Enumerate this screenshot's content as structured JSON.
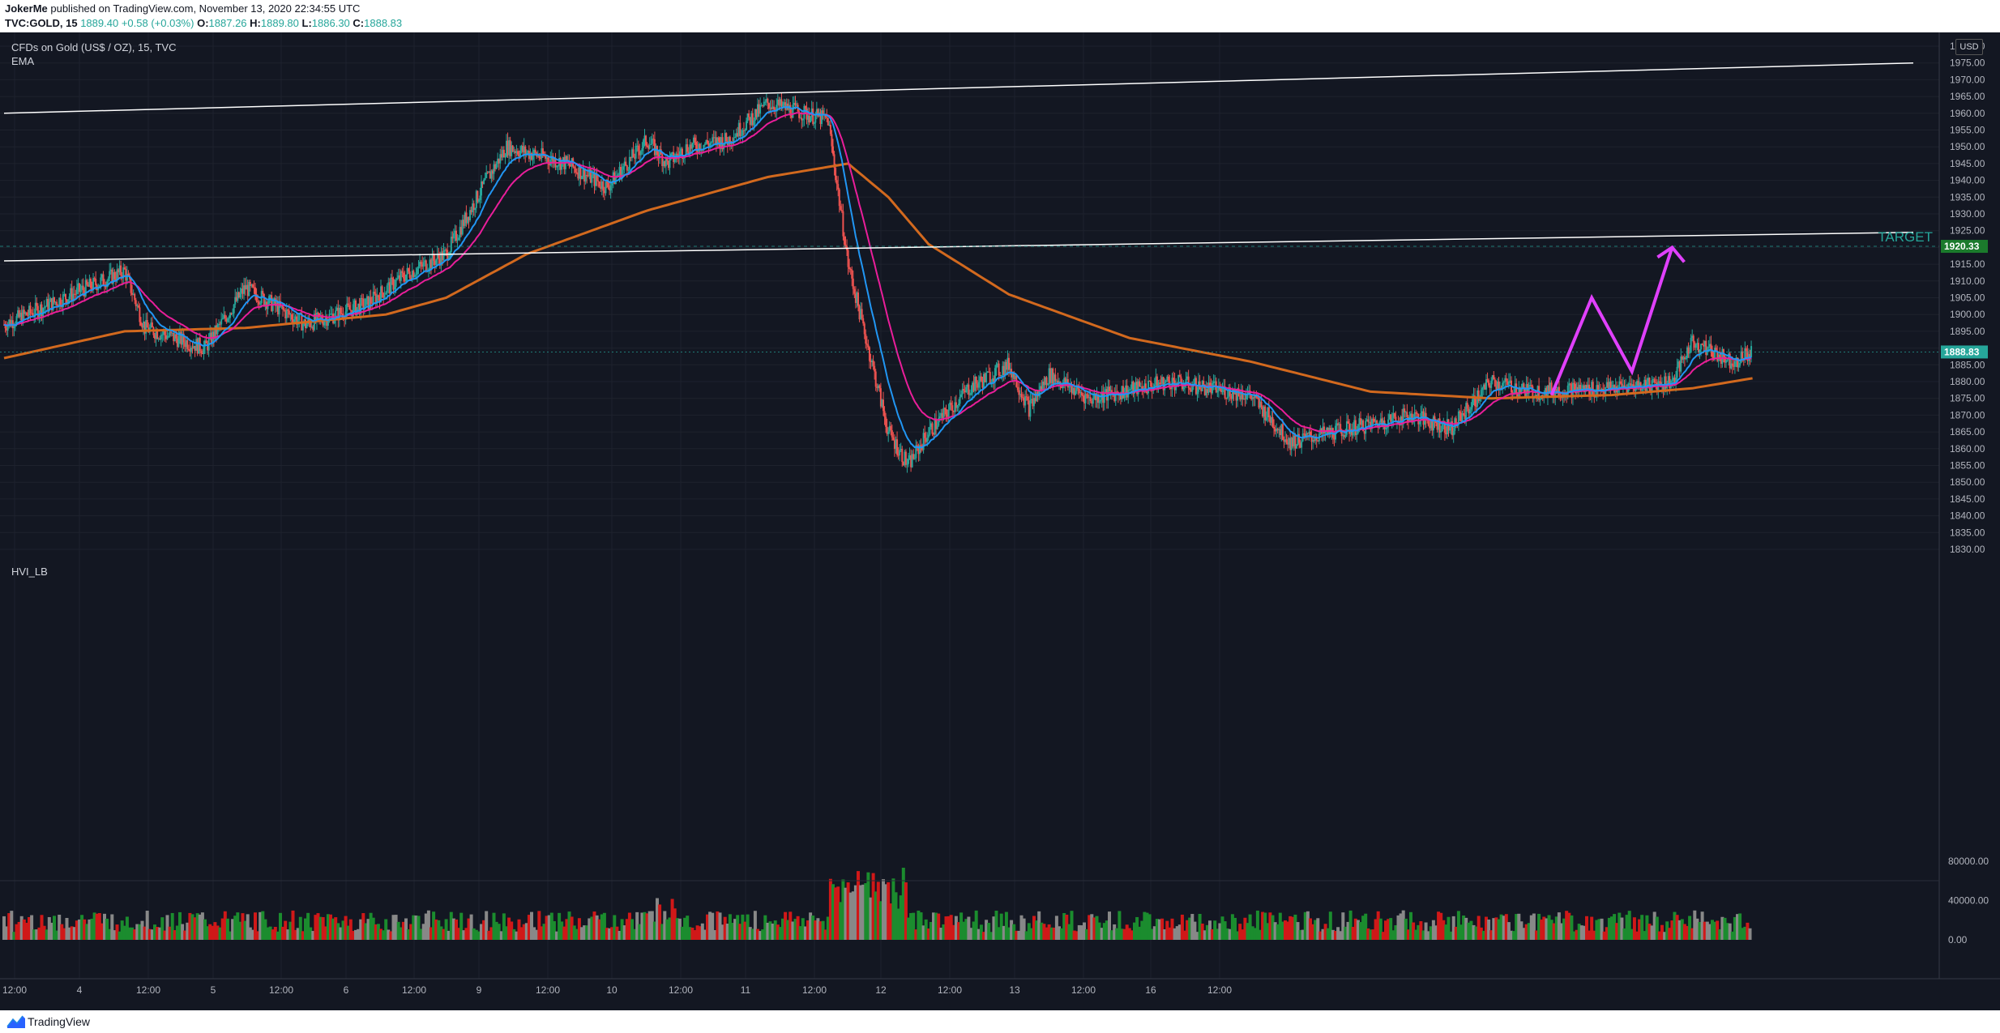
{
  "header": {
    "author": "JokerMe",
    "published_text": " published on TradingView.com, November 13, 2020 22:34:55 UTC",
    "symbol": "TVC:GOLD, 15",
    "last": "1889.40",
    "change": "+0.58 (+0.03%)",
    "o_label": "O:",
    "o_value": "1887.26",
    "h_label": "H:",
    "h_value": "1889.80",
    "l_label": "L:",
    "l_value": "1886.30",
    "c_label": "C:",
    "c_value": "1888.83"
  },
  "legend": {
    "instrument": "CFDs on Gold (US$ / OZ), 15, TVC",
    "indicator": "EMA",
    "volume_indicator": "HVI_LB"
  },
  "price_scale": {
    "currency": "USD",
    "ticks": [
      "1980.00",
      "1975.00",
      "1970.00",
      "1965.00",
      "1960.00",
      "1955.00",
      "1950.00",
      "1945.00",
      "1940.00",
      "1935.00",
      "1930.00",
      "1925.00",
      "1915.00",
      "1910.00",
      "1905.00",
      "1900.00",
      "1895.00",
      "1885.00",
      "1880.00",
      "1875.00",
      "1870.00",
      "1865.00",
      "1860.00",
      "1855.00",
      "1850.00",
      "1845.00",
      "1840.00",
      "1835.00",
      "1830.00"
    ],
    "target_price": "1920.33",
    "last_price": "1888.83"
  },
  "volume_scale": {
    "ticks": [
      "80000.00",
      "40000.00",
      "0.00"
    ]
  },
  "time_axis": {
    "ticks": [
      "12:00",
      "4",
      "12:00",
      "5",
      "12:00",
      "6",
      "12:00",
      "9",
      "12:00",
      "10",
      "12:00",
      "11",
      "12:00",
      "12",
      "12:00",
      "13",
      "12:00",
      "16",
      "12:00"
    ]
  },
  "annotation": {
    "target_label": "TARGET"
  },
  "footer": {
    "brand": "TradingView"
  },
  "colors": {
    "background": "#131722",
    "up": "#26a69a",
    "down": "#ef5350",
    "ema_fast": "#2196f3",
    "ema_mid": "#e91e9a",
    "ema_slow": "#d2691e",
    "arrow": "#e040fb",
    "target": "#26a69a"
  },
  "chart_data": {
    "type": "candlestick",
    "interval": "15",
    "ylim": [
      1826,
      1985
    ],
    "price_path": [
      {
        "t": 0,
        "p": 1897
      },
      {
        "t": 3,
        "p": 1905
      },
      {
        "t": 6,
        "p": 1913
      },
      {
        "t": 7,
        "p": 1896
      },
      {
        "t": 10,
        "p": 1890
      },
      {
        "t": 12,
        "p": 1908
      },
      {
        "t": 15,
        "p": 1897
      },
      {
        "t": 18,
        "p": 1903
      },
      {
        "t": 20,
        "p": 1912
      },
      {
        "t": 22,
        "p": 1918
      },
      {
        "t": 24,
        "p": 1940
      },
      {
        "t": 25,
        "p": 1950
      },
      {
        "t": 28,
        "p": 1945
      },
      {
        "t": 30,
        "p": 1938
      },
      {
        "t": 32,
        "p": 1952
      },
      {
        "t": 33,
        "p": 1945
      },
      {
        "t": 34,
        "p": 1950
      },
      {
        "t": 36,
        "p": 1952
      },
      {
        "t": 38,
        "p": 1963
      },
      {
        "t": 41,
        "p": 1958
      },
      {
        "t": 42,
        "p": 1915
      },
      {
        "t": 43,
        "p": 1890
      },
      {
        "t": 44,
        "p": 1865
      },
      {
        "t": 45,
        "p": 1855
      },
      {
        "t": 46,
        "p": 1865
      },
      {
        "t": 48,
        "p": 1878
      },
      {
        "t": 50,
        "p": 1885
      },
      {
        "t": 51,
        "p": 1872
      },
      {
        "t": 52,
        "p": 1882
      },
      {
        "t": 54,
        "p": 1875
      },
      {
        "t": 58,
        "p": 1880
      },
      {
        "t": 62,
        "p": 1876
      },
      {
        "t": 64,
        "p": 1862
      },
      {
        "t": 67,
        "p": 1866
      },
      {
        "t": 70,
        "p": 1870
      },
      {
        "t": 72,
        "p": 1866
      },
      {
        "t": 74,
        "p": 1880
      },
      {
        "t": 76,
        "p": 1877
      },
      {
        "t": 80,
        "p": 1878
      },
      {
        "t": 83,
        "p": 1880
      },
      {
        "t": 84,
        "p": 1892
      },
      {
        "t": 86,
        "p": 1886
      },
      {
        "t": 87,
        "p": 1889
      }
    ],
    "ema_slow": [
      {
        "t": 0,
        "p": 1887
      },
      {
        "t": 6,
        "p": 1895
      },
      {
        "t": 12,
        "p": 1896
      },
      {
        "t": 19,
        "p": 1900
      },
      {
        "t": 22,
        "p": 1905
      },
      {
        "t": 26,
        "p": 1918
      },
      {
        "t": 32,
        "p": 1931
      },
      {
        "t": 38,
        "p": 1941
      },
      {
        "t": 42,
        "p": 1945
      },
      {
        "t": 44,
        "p": 1935
      },
      {
        "t": 46,
        "p": 1921
      },
      {
        "t": 50,
        "p": 1906
      },
      {
        "t": 56,
        "p": 1893
      },
      {
        "t": 62,
        "p": 1886
      },
      {
        "t": 68,
        "p": 1877
      },
      {
        "t": 74,
        "p": 1875
      },
      {
        "t": 80,
        "p": 1876
      },
      {
        "t": 84,
        "p": 1878
      },
      {
        "t": 87,
        "p": 1881
      }
    ],
    "upper_channel": {
      "from": {
        "t": 0,
        "p": 1960
      },
      "to": {
        "t": 95,
        "p": 1975
      }
    },
    "lower_channel": {
      "from": {
        "t": 0,
        "p": 1916
      },
      "to": {
        "t": 95,
        "p": 1924.5
      }
    },
    "target_level": 1920.33,
    "projection_path": [
      {
        "t": 77,
        "p": 1876
      },
      {
        "t": 79,
        "p": 1905
      },
      {
        "t": 81,
        "p": 1883
      },
      {
        "t": 83,
        "p": 1920
      }
    ],
    "volume_ylim": [
      0,
      90000
    ]
  }
}
